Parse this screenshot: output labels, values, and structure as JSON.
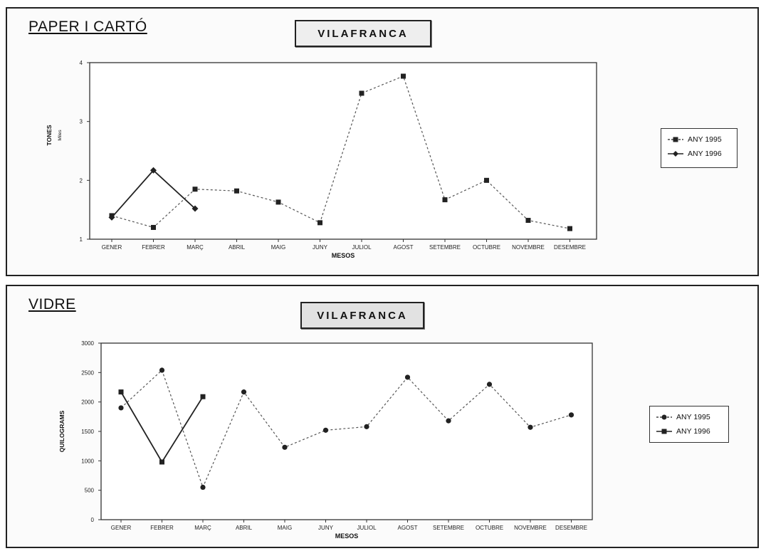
{
  "charts": [
    {
      "section_title": "PAPER I CARTÓ",
      "town": "VILAFRANCA",
      "chart_data": {
        "type": "line",
        "categories": [
          "GENER",
          "FEBRER",
          "MARÇ",
          "ABRIL",
          "MAIG",
          "JUNY",
          "JULIOL",
          "AGOST",
          "SETEMBRE",
          "OCTUBRE",
          "NOVEMBRE",
          "DESEMBRE"
        ],
        "ylabel": "TONES",
        "yunit": "Miles",
        "xlabel": "MESOS",
        "ylim": [
          1,
          4
        ],
        "yticks": [
          1,
          2,
          3,
          4
        ],
        "legend": "right",
        "series": [
          {
            "name": "ANY 1995",
            "style": "dashed",
            "marker": "square",
            "values": [
              1.4,
              1.2,
              1.85,
              1.82,
              1.63,
              1.28,
              3.48,
              3.77,
              1.67,
              2.0,
              1.32,
              1.18
            ]
          },
          {
            "name": "ANY 1996",
            "style": "solid",
            "marker": "diamond",
            "values": [
              1.37,
              2.17,
              1.52,
              null,
              null,
              null,
              null,
              null,
              null,
              null,
              null,
              null
            ]
          }
        ]
      }
    },
    {
      "section_title": "VIDRE",
      "town": "VILAFRANCA",
      "chart_data": {
        "type": "line",
        "categories": [
          "GENER",
          "FEBRER",
          "MARÇ",
          "ABRIL",
          "MAIG",
          "JUNY",
          "JULIOL",
          "AGOST",
          "SETEMBRE",
          "OCTUBRE",
          "NOVEMBRE",
          "DESEMBRE"
        ],
        "ylabel": "QUILOGRAMS",
        "xlabel": "MESOS",
        "ylim": [
          0,
          3000
        ],
        "yticks": [
          0,
          500,
          1000,
          1500,
          2000,
          2500,
          3000
        ],
        "legend": "right",
        "series": [
          {
            "name": "ANY 1995",
            "style": "dashed",
            "marker": "circle",
            "values": [
              1900,
              2540,
              550,
              2170,
              1230,
              1520,
              1580,
              2420,
              1680,
              2300,
              1570,
              1780
            ]
          },
          {
            "name": "ANY 1996",
            "style": "solid",
            "marker": "square",
            "values": [
              2170,
              980,
              2090,
              null,
              null,
              null,
              null,
              null,
              null,
              null,
              null,
              null
            ]
          }
        ]
      }
    }
  ]
}
